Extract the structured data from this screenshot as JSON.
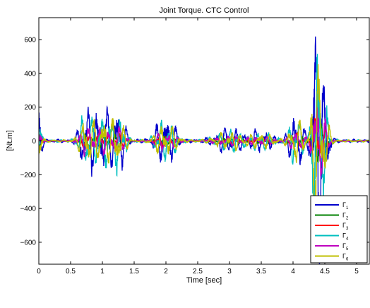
{
  "chart_data": {
    "type": "line",
    "title": "Joint Torque. CTC Control",
    "xlabel": "Time [sec]",
    "ylabel": "[Nt.m]",
    "xlim": [
      0,
      5.2
    ],
    "ylim": [
      -730,
      730
    ],
    "xticks": [
      0,
      0.5,
      1,
      1.5,
      2,
      2.5,
      3,
      3.5,
      4,
      4.5,
      5
    ],
    "xtick_labels": [
      "0",
      "0.5",
      "1",
      "1.5",
      "2",
      "2.5",
      "3",
      "3.5",
      "4",
      "4.5",
      "5"
    ],
    "yticks": [
      -600,
      -400,
      -200,
      0,
      200,
      400,
      600
    ],
    "ytick_labels": [
      "−600",
      "−400",
      "−200",
      "0",
      "200",
      "400",
      "600"
    ],
    "grid": false,
    "legend_position": "bottom-right",
    "series": [
      {
        "name": "Γ",
        "sub": "1",
        "color": "#0000cc",
        "amplitude": 1.0,
        "seed": 11
      },
      {
        "name": "Γ",
        "sub": "2",
        "color": "#008000",
        "amplitude": 0.18,
        "seed": 23
      },
      {
        "name": "Γ",
        "sub": "3",
        "color": "#ff0000",
        "amplitude": 0.22,
        "seed": 37
      },
      {
        "name": "Γ",
        "sub": "4",
        "color": "#00bfbf",
        "amplitude": 0.85,
        "seed": 41
      },
      {
        "name": "Γ",
        "sub": "5",
        "color": "#bf00bf",
        "amplitude": 0.4,
        "seed": 53
      },
      {
        "name": "Γ",
        "sub": "6",
        "color": "#bfbf00",
        "amplitude": 0.7,
        "seed": 67
      }
    ],
    "bursts": [
      {
        "t": 0.0,
        "w": 0.05,
        "peak": 180
      },
      {
        "t": 0.75,
        "w": 0.12,
        "peak": 190
      },
      {
        "t": 1.0,
        "w": 0.15,
        "peak": 170
      },
      {
        "t": 1.25,
        "w": 0.12,
        "peak": 190
      },
      {
        "t": 1.95,
        "w": 0.15,
        "peak": 110
      },
      {
        "t": 2.1,
        "w": 0.12,
        "peak": 60
      },
      {
        "t": 3.0,
        "w": 0.25,
        "peak": 70
      },
      {
        "t": 3.5,
        "w": 0.2,
        "peak": 60
      },
      {
        "t": 4.05,
        "w": 0.12,
        "peak": 180
      },
      {
        "t": 4.37,
        "w": 0.08,
        "peak": 740
      },
      {
        "t": 4.5,
        "w": 0.08,
        "peak": 250
      }
    ]
  }
}
